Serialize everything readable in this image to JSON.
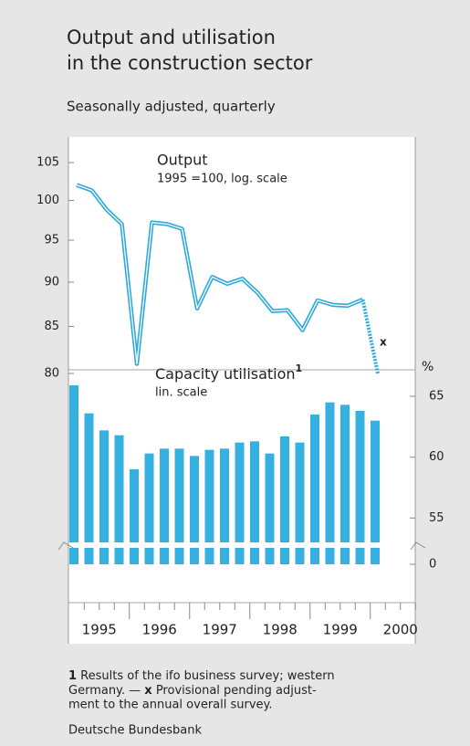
{
  "title_lines": [
    "Output and utilisation",
    "in the construction sector"
  ],
  "subtitle": "Seasonally adjusted, quarterly",
  "year_labels": [
    "1995",
    "1996",
    "1997",
    "1998",
    "1999",
    "2000"
  ],
  "footnote": [
    "1",
    " Results of the ifo business survey; western",
    "Germany. — ",
    "x",
    " Provisional pending adjust-",
    "ment to the annual overall survey."
  ],
  "source": "Deutsche Bundesbank",
  "chart_data": [
    {
      "type": "line",
      "title": "Output",
      "subtitle": "1995 =100, log. scale",
      "log_scale": true,
      "color": "#2ea9da",
      "values": [
        102,
        101.3,
        98.8,
        97.0,
        81,
        97.2,
        97.0,
        96.4,
        87.0,
        90.6,
        89.8,
        90.4,
        88.8,
        86.7,
        86.8,
        84.6,
        87.9,
        87.4,
        87.3,
        88.0,
        null
      ],
      "provisional_values": [
        null,
        null,
        null,
        null,
        null,
        null,
        null,
        null,
        null,
        null,
        null,
        null,
        null,
        null,
        null,
        null,
        null,
        null,
        null,
        null,
        80
      ],
      "provisional_marker": "x",
      "ylim": [
        80,
        106
      ],
      "yticks": [
        80,
        85,
        90,
        95,
        100,
        105
      ]
    },
    {
      "type": "bar",
      "title": "Capacity utilisation",
      "title_note": "1",
      "subtitle": "lin. scale",
      "ylabel": "%",
      "color": "#35b0e0",
      "axis_break": true,
      "values": [
        65.9,
        63.6,
        62.2,
        61.8,
        59.0,
        60.3,
        60.7,
        60.7,
        60.1,
        60.6,
        60.7,
        61.2,
        61.3,
        60.3,
        61.7,
        61.2,
        63.5,
        64.5,
        64.3,
        63.8,
        63.0
      ],
      "ylim": [
        53,
        66.5
      ],
      "yticks": [
        0,
        55,
        60,
        65
      ]
    }
  ]
}
